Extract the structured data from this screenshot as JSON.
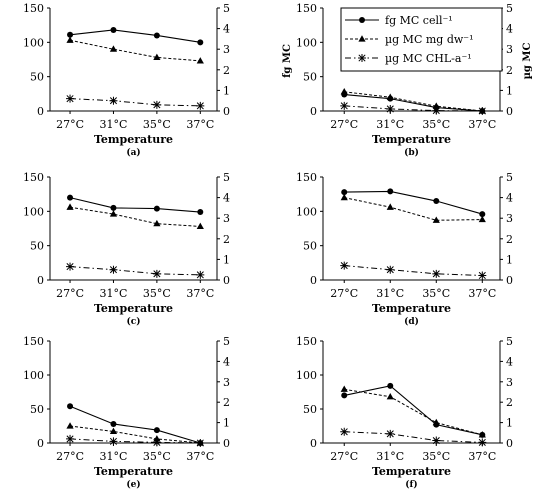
{
  "chart_data": [
    {
      "type": "line",
      "panel": "(a)",
      "categories": [
        "27°C",
        "31°C",
        "35°C",
        "37°C"
      ],
      "xlabel": "Temperature",
      "ylim_left": [
        0,
        150
      ],
      "yticks_left": [
        0,
        50,
        100,
        150
      ],
      "ylim_right": [
        0,
        5
      ],
      "yticks_right": [
        0,
        1,
        2,
        3,
        4,
        5
      ],
      "series": [
        {
          "key": "cell",
          "axis": "left",
          "values": [
            111,
            118,
            110,
            100
          ]
        },
        {
          "key": "dw",
          "axis": "left",
          "values": [
            103,
            90,
            78,
            73
          ]
        },
        {
          "key": "chl",
          "axis": "right",
          "values": [
            0.6,
            0.5,
            0.3,
            0.25
          ]
        }
      ]
    },
    {
      "type": "line",
      "panel": "(b)",
      "categories": [
        "27°C",
        "31°C",
        "35°C",
        "37°C"
      ],
      "xlabel": "Temperature",
      "ylabel_left": "fg MC",
      "ylabel_right": "µg MC",
      "ylim_left": [
        0,
        150
      ],
      "yticks_left": [
        0,
        50,
        100,
        150
      ],
      "ylim_right": [
        0,
        5
      ],
      "yticks_right": [
        0,
        1,
        2,
        3,
        4,
        5
      ],
      "series": [
        {
          "key": "cell",
          "axis": "left",
          "values": [
            24,
            18,
            5,
            0
          ]
        },
        {
          "key": "dw",
          "axis": "left",
          "values": [
            28,
            20,
            7,
            0
          ]
        },
        {
          "key": "chl",
          "axis": "right",
          "values": [
            0.25,
            0.1,
            0.02,
            0
          ]
        }
      ]
    },
    {
      "type": "line",
      "panel": "(c)",
      "categories": [
        "27°C",
        "31°C",
        "35°C",
        "37°C"
      ],
      "xlabel": "Temperature",
      "ylim_left": [
        0,
        150
      ],
      "yticks_left": [
        0,
        50,
        100,
        150
      ],
      "ylim_right": [
        0,
        5
      ],
      "yticks_right": [
        0,
        1,
        2,
        3,
        4,
        5
      ],
      "series": [
        {
          "key": "cell",
          "axis": "left",
          "values": [
            120,
            105,
            104,
            99
          ]
        },
        {
          "key": "dw",
          "axis": "left",
          "values": [
            106,
            96,
            82,
            78
          ]
        },
        {
          "key": "chl",
          "axis": "right",
          "values": [
            0.65,
            0.5,
            0.3,
            0.25
          ]
        }
      ]
    },
    {
      "type": "line",
      "panel": "(d)",
      "categories": [
        "27°C",
        "31°C",
        "35°C",
        "37°C"
      ],
      "xlabel": "Temperature",
      "ylim_left": [
        0,
        150
      ],
      "yticks_left": [
        0,
        50,
        100,
        150
      ],
      "ylim_right": [
        0,
        5
      ],
      "yticks_right": [
        0,
        1,
        2,
        3,
        4,
        5
      ],
      "series": [
        {
          "key": "cell",
          "axis": "left",
          "values": [
            128,
            129,
            115,
            96
          ]
        },
        {
          "key": "dw",
          "axis": "left",
          "values": [
            120,
            106,
            87,
            88
          ]
        },
        {
          "key": "chl",
          "axis": "right",
          "values": [
            0.7,
            0.5,
            0.3,
            0.22
          ]
        }
      ]
    },
    {
      "type": "line",
      "panel": "(e)",
      "categories": [
        "27°C",
        "31°C",
        "35°C",
        "37°C"
      ],
      "xlabel": "Temperature",
      "ylim_left": [
        0,
        150
      ],
      "yticks_left": [
        0,
        50,
        100,
        150
      ],
      "ylim_right": [
        0,
        5
      ],
      "yticks_right": [
        0,
        1,
        2,
        3,
        4,
        5
      ],
      "series": [
        {
          "key": "cell",
          "axis": "left",
          "values": [
            54,
            28,
            19,
            0
          ]
        },
        {
          "key": "dw",
          "axis": "left",
          "values": [
            25,
            17,
            6,
            0
          ]
        },
        {
          "key": "chl",
          "axis": "right",
          "values": [
            0.2,
            0.08,
            0.03,
            0
          ]
        }
      ]
    },
    {
      "type": "line",
      "panel": "(f)",
      "categories": [
        "27°C",
        "31°C",
        "35°C",
        "37°C"
      ],
      "xlabel": "Temperature",
      "ylim_left": [
        0,
        150
      ],
      "yticks_left": [
        0,
        50,
        100,
        150
      ],
      "ylim_right": [
        0,
        5
      ],
      "yticks_right": [
        0,
        1,
        2,
        3,
        4,
        5
      ],
      "series": [
        {
          "key": "cell",
          "axis": "left",
          "values": [
            70,
            84,
            27,
            12
          ]
        },
        {
          "key": "dw",
          "axis": "left",
          "values": [
            79,
            68,
            30,
            12
          ]
        },
        {
          "key": "chl",
          "axis": "right",
          "values": [
            0.55,
            0.45,
            0.12,
            0.03
          ]
        }
      ]
    }
  ],
  "legend": {
    "placement": "top-right of panel (b)",
    "items": [
      {
        "key": "cell",
        "label": "fg MC cell⁻¹",
        "marker": "circle",
        "line": "solid"
      },
      {
        "key": "dw",
        "label": "µg MC mg dw⁻¹",
        "marker": "triangle",
        "line": "dashed"
      },
      {
        "key": "chl",
        "label": "µg MC CHL-a⁻¹",
        "marker": "asterisk",
        "line": "dash-dot"
      }
    ]
  },
  "colors": {
    "line": "#000000",
    "background": "#ffffff"
  }
}
